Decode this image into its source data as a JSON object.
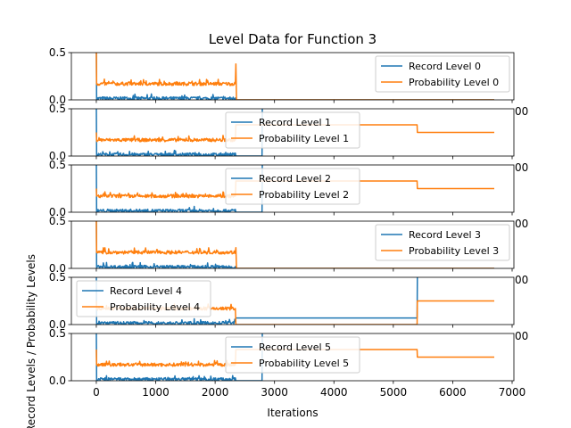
{
  "chart_data": {
    "type": "line",
    "title": "Level Data for Function 3",
    "xlabel": "Iterations",
    "ylabel": "Record Levels / Probability Levels",
    "x_ticks": [
      "0",
      "1000",
      "2000",
      "3000",
      "4000",
      "5000",
      "6000",
      "7000"
    ],
    "xlim": [
      -420,
      7030
    ],
    "ylim": [
      0,
      0.5
    ],
    "y_ticks": [
      "0.0",
      "0.5"
    ],
    "colors": {
      "record": "#1f77b4",
      "probability": "#ff7f0e"
    },
    "stray_tick_label": "00",
    "panels": [
      {
        "legend": [
          "Record Level 0",
          "Probability Level 0"
        ],
        "legend_position": "upper-right",
        "record": [
          [
            0,
            0.5
          ],
          [
            5,
            0.0
          ],
          [
            2340,
            0.02
          ],
          [
            2350,
            0.0
          ],
          [
            6700,
            0.0
          ]
        ],
        "probability": [
          [
            0,
            0.5
          ],
          [
            5,
            0.17
          ],
          [
            2340,
            0.17
          ],
          [
            2350,
            0.38
          ],
          [
            2360,
            0.0
          ],
          [
            6700,
            0.0
          ]
        ]
      },
      {
        "legend": [
          "Record Level 1",
          "Probability Level 1"
        ],
        "legend_position": "upper-center",
        "record": [
          [
            0,
            0.5
          ],
          [
            5,
            0.0
          ],
          [
            2340,
            0.03
          ],
          [
            2350,
            0.0
          ],
          [
            2790,
            0.0
          ],
          [
            2795,
            0.5
          ]
        ],
        "probability": [
          [
            0,
            0.25
          ],
          [
            5,
            0.17
          ],
          [
            2340,
            0.17
          ],
          [
            2350,
            0.33
          ],
          [
            5400,
            0.33
          ],
          [
            5405,
            0.25
          ],
          [
            6700,
            0.25
          ]
        ]
      },
      {
        "legend": [
          "Record Level 2",
          "Probability Level 2"
        ],
        "legend_position": "upper-center",
        "record": [
          [
            0,
            0.5
          ],
          [
            5,
            0.0
          ],
          [
            2340,
            0.03
          ],
          [
            2350,
            0.0
          ],
          [
            2790,
            0.0
          ],
          [
            2795,
            0.5
          ]
        ],
        "probability": [
          [
            0,
            0.25
          ],
          [
            5,
            0.17
          ],
          [
            2340,
            0.17
          ],
          [
            2350,
            0.33
          ],
          [
            5400,
            0.33
          ],
          [
            5405,
            0.25
          ],
          [
            6700,
            0.25
          ]
        ]
      },
      {
        "legend": [
          "Record Level 3",
          "Probability Level 3"
        ],
        "legend_position": "upper-right",
        "record": [
          [
            0,
            0.5
          ],
          [
            5,
            0.0
          ],
          [
            2340,
            0.02
          ],
          [
            2350,
            0.0
          ],
          [
            6700,
            0.0
          ]
        ],
        "probability": [
          [
            0,
            0.5
          ],
          [
            5,
            0.17
          ],
          [
            2340,
            0.17
          ],
          [
            2350,
            0.22
          ],
          [
            2360,
            0.0
          ],
          [
            6700,
            0.0
          ]
        ]
      },
      {
        "legend": [
          "Record Level 4",
          "Probability Level 4"
        ],
        "legend_position": "upper-left",
        "record": [
          [
            0,
            0.5
          ],
          [
            5,
            0.0
          ],
          [
            2340,
            0.03
          ],
          [
            2350,
            0.07
          ],
          [
            5400,
            0.07
          ],
          [
            5405,
            0.5
          ]
        ],
        "probability": [
          [
            0,
            0.25
          ],
          [
            5,
            0.17
          ],
          [
            2340,
            0.17
          ],
          [
            2350,
            0.0
          ],
          [
            5400,
            0.0
          ],
          [
            5405,
            0.25
          ],
          [
            6700,
            0.25
          ]
        ]
      },
      {
        "legend": [
          "Record Level 5",
          "Probability Level 5"
        ],
        "legend_position": "upper-center",
        "record": [
          [
            0,
            0.5
          ],
          [
            5,
            0.0
          ],
          [
            2340,
            0.03
          ],
          [
            2350,
            0.0
          ],
          [
            2790,
            0.0
          ],
          [
            2795,
            0.5
          ]
        ],
        "probability": [
          [
            0,
            0.33
          ],
          [
            5,
            0.17
          ],
          [
            2340,
            0.17
          ],
          [
            2350,
            0.33
          ],
          [
            5400,
            0.33
          ],
          [
            5405,
            0.25
          ],
          [
            6700,
            0.25
          ]
        ]
      }
    ]
  }
}
